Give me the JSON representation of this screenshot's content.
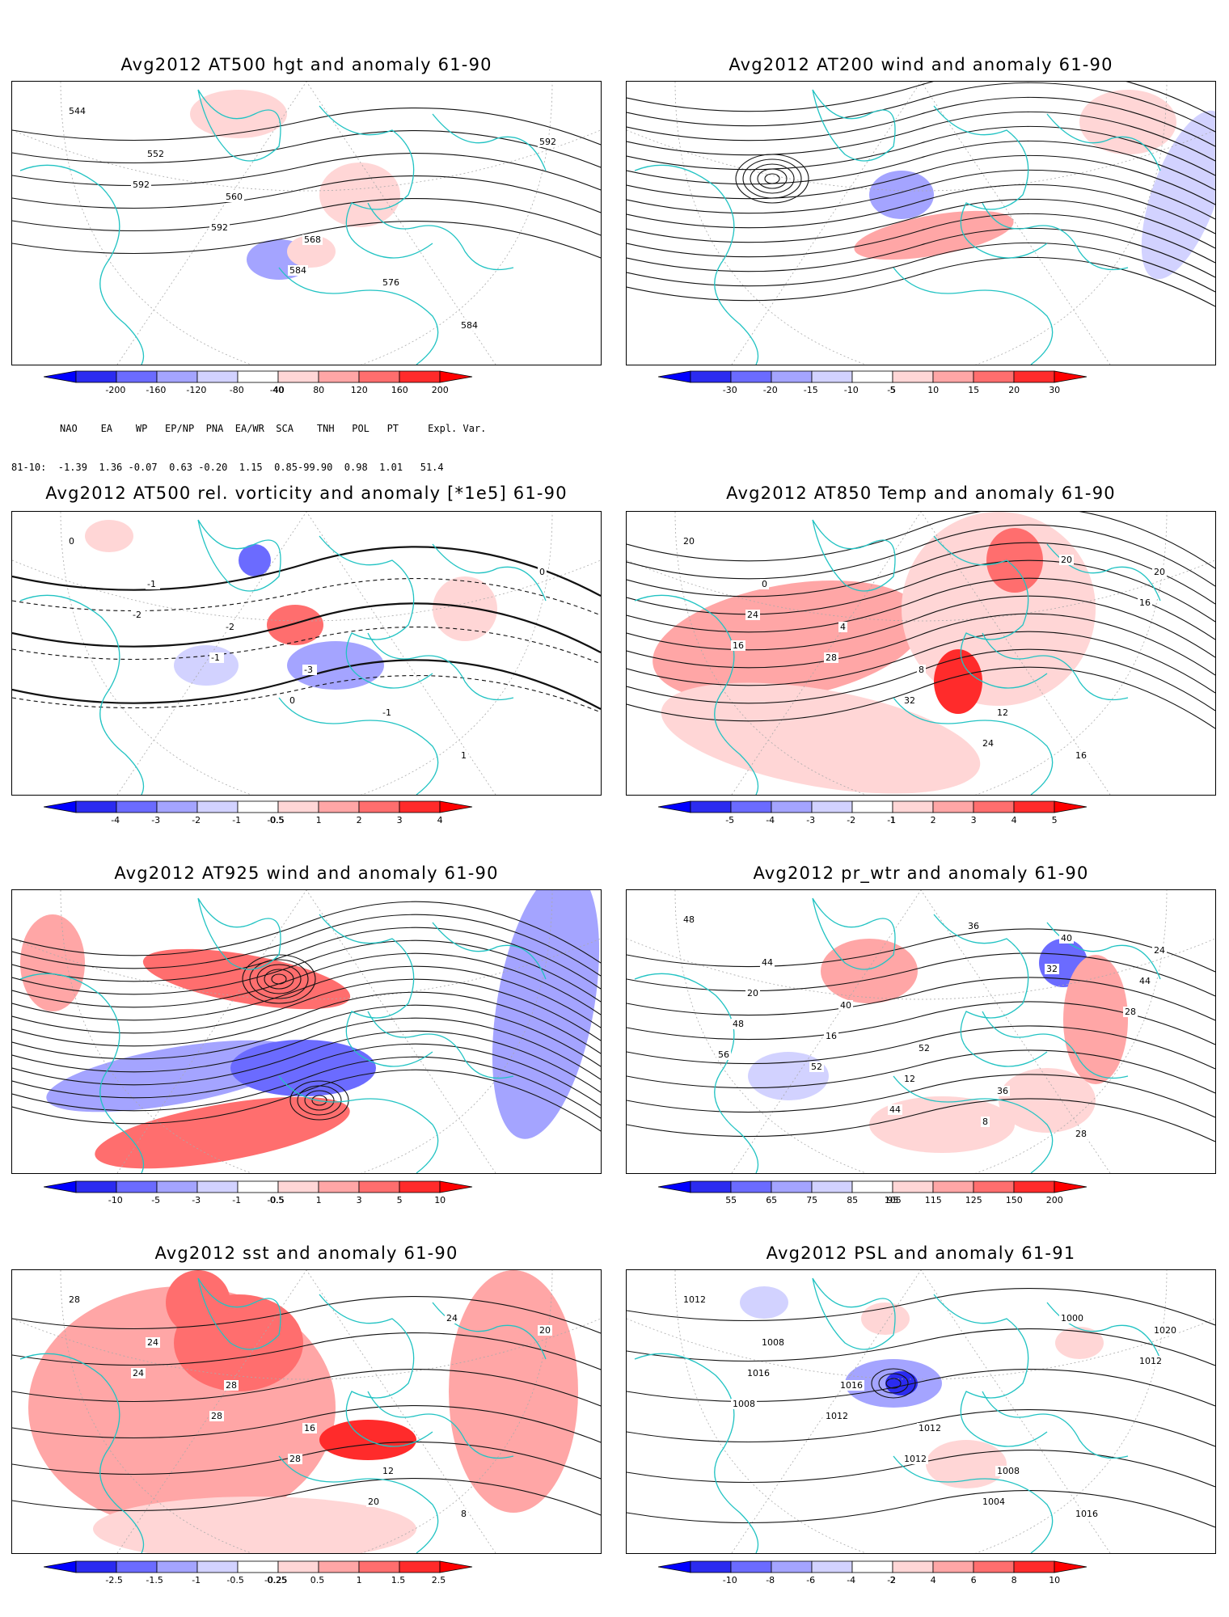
{
  "colors": {
    "neg3": "#2b2bf0",
    "neg2": "#6b6bff",
    "neg1": "#a4a4ff",
    "neg0": "#d2d2ff",
    "pos0": "#ffd6d6",
    "pos1": "#ffa6a6",
    "pos2": "#ff6e6e",
    "pos3": "#ff2b2b",
    "coast": "#22c3c3"
  },
  "panels": [
    {
      "title": "Avg2012 AT500 hgt and anomaly 61-90",
      "colorbar": [
        "-200",
        "-160",
        "-120",
        "-80",
        "-40",
        "40",
        "80",
        "120",
        "160",
        "200"
      ],
      "contour_labels": [
        "544",
        "552",
        "560",
        "568",
        "576",
        "584",
        "592",
        "592",
        "592",
        "584"
      ]
    },
    {
      "title": "Avg2012 AT200 wind and anomaly 61-90",
      "colorbar": [
        "-30",
        "-20",
        "-15",
        "-10",
        "-5",
        "5",
        "10",
        "15",
        "20",
        "30"
      ],
      "contour_labels": []
    },
    {
      "title": "Avg2012 AT500 rel. vorticity and anomaly [*1e5] 61-90",
      "colorbar": [
        "-4",
        "-3",
        "-2",
        "-1",
        "-0.5",
        "0.5",
        "1",
        "2",
        "3",
        "4"
      ],
      "contour_labels": [
        "0",
        "-1",
        "-2",
        "-3",
        "-1",
        "1",
        "0",
        "-2",
        "-1",
        "0"
      ]
    },
    {
      "title": "Avg2012 AT850 Temp and anomaly 61-90",
      "colorbar": [
        "-5",
        "-4",
        "-3",
        "-2",
        "-1",
        "1",
        "2",
        "3",
        "4",
        "5"
      ],
      "contour_labels": [
        "20",
        "0",
        "4",
        "8",
        "12",
        "16",
        "20",
        "24",
        "28",
        "32",
        "24",
        "20",
        "16",
        "16"
      ]
    },
    {
      "title": "Avg2012 AT925 wind and anomaly 61-90",
      "colorbar": [
        "-10",
        "-5",
        "-3",
        "-1",
        "-0.5",
        "0.5",
        "1",
        "3",
        "5",
        "10"
      ],
      "contour_labels": []
    },
    {
      "title": "Avg2012 pr_wtr and anomaly 61-90",
      "colorbar": [
        "55",
        "65",
        "75",
        "85",
        "95",
        "105",
        "115",
        "125",
        "150",
        "200"
      ],
      "contour_labels": [
        "48",
        "44",
        "40",
        "52",
        "36",
        "28",
        "24",
        "20",
        "16",
        "12",
        "8",
        "40",
        "44",
        "48",
        "52",
        "44",
        "36",
        "32",
        "28",
        "56"
      ]
    },
    {
      "title": "Avg2012 sst and anomaly 61-90",
      "colorbar": [
        "-2.5",
        "-1.5",
        "-1",
        "-0.5",
        "-0.25",
        "0.25",
        "0.5",
        "1",
        "1.5",
        "2.5"
      ],
      "contour_labels": [
        "28",
        "24",
        "28",
        "16",
        "12",
        "8",
        "20",
        "24",
        "28",
        "28",
        "20",
        "24"
      ]
    },
    {
      "title": "Avg2012 PSL and anomaly 61-91",
      "colorbar": [
        "-10",
        "-8",
        "-6",
        "-4",
        "-2",
        "2",
        "4",
        "6",
        "8",
        "10"
      ],
      "contour_labels": [
        "1012",
        "1008",
        "1016",
        "1012",
        "1008",
        "1016",
        "1020",
        "1016",
        "1012",
        "1012",
        "1004",
        "1000",
        "1012",
        "1008"
      ]
    }
  ],
  "teleconnections": {
    "header": "NAO    EA    WP   EP/NP  PNA  EA/WR  SCA    TNH   POL   PT     Expl. Var.",
    "row": "81-10:  -1.39  1.36 -0.07  0.63 -0.20  1.15  0.85-99.90  0.98  1.01   51.4"
  }
}
